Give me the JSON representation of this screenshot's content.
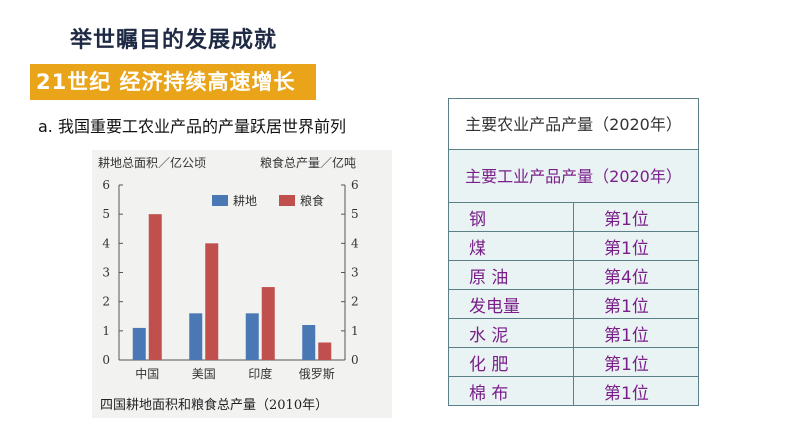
{
  "slide": {
    "title": "举世瞩目的发展成就",
    "banner": "21世纪  经济持续高速增长",
    "subheading": "a. 我国重要工农业产品的产量跃居世界前列"
  },
  "chart_data": {
    "type": "bar",
    "title": "四国耕地面积和粮食总产量（2010年）",
    "ylabel_left": "耕地总面积／亿公顷",
    "ylabel_right": "粮食总产量／亿吨",
    "categories": [
      "中国",
      "美国",
      "印度",
      "俄罗斯"
    ],
    "series": [
      {
        "name": "耕地",
        "axis": "left",
        "color": "#4a78b5",
        "values": [
          1.1,
          1.6,
          1.6,
          1.2
        ]
      },
      {
        "name": "粮食",
        "axis": "right",
        "color": "#c0504d",
        "values": [
          5.0,
          4.0,
          2.5,
          0.6
        ]
      }
    ],
    "ylim_left": [
      0,
      6
    ],
    "ylim_right": [
      0,
      6
    ],
    "yticks": [
      "0",
      "1",
      "2",
      "3",
      "4",
      "5",
      "6"
    ],
    "legend": "top-right",
    "grid": false
  },
  "table": {
    "agri_header": "主要农业产品产量（2020年）",
    "industry_header": "主要工业产品产量（2020年）",
    "rows": [
      {
        "product": "钢",
        "rank": "第1位"
      },
      {
        "product": "煤",
        "rank": "第1位"
      },
      {
        "product": "原 油",
        "rank": "第4位"
      },
      {
        "product": "发电量",
        "rank": "第1位"
      },
      {
        "product": "水 泥",
        "rank": "第1位"
      },
      {
        "product": "化 肥",
        "rank": "第1位"
      },
      {
        "product": "棉 布",
        "rank": "第1位"
      }
    ]
  }
}
